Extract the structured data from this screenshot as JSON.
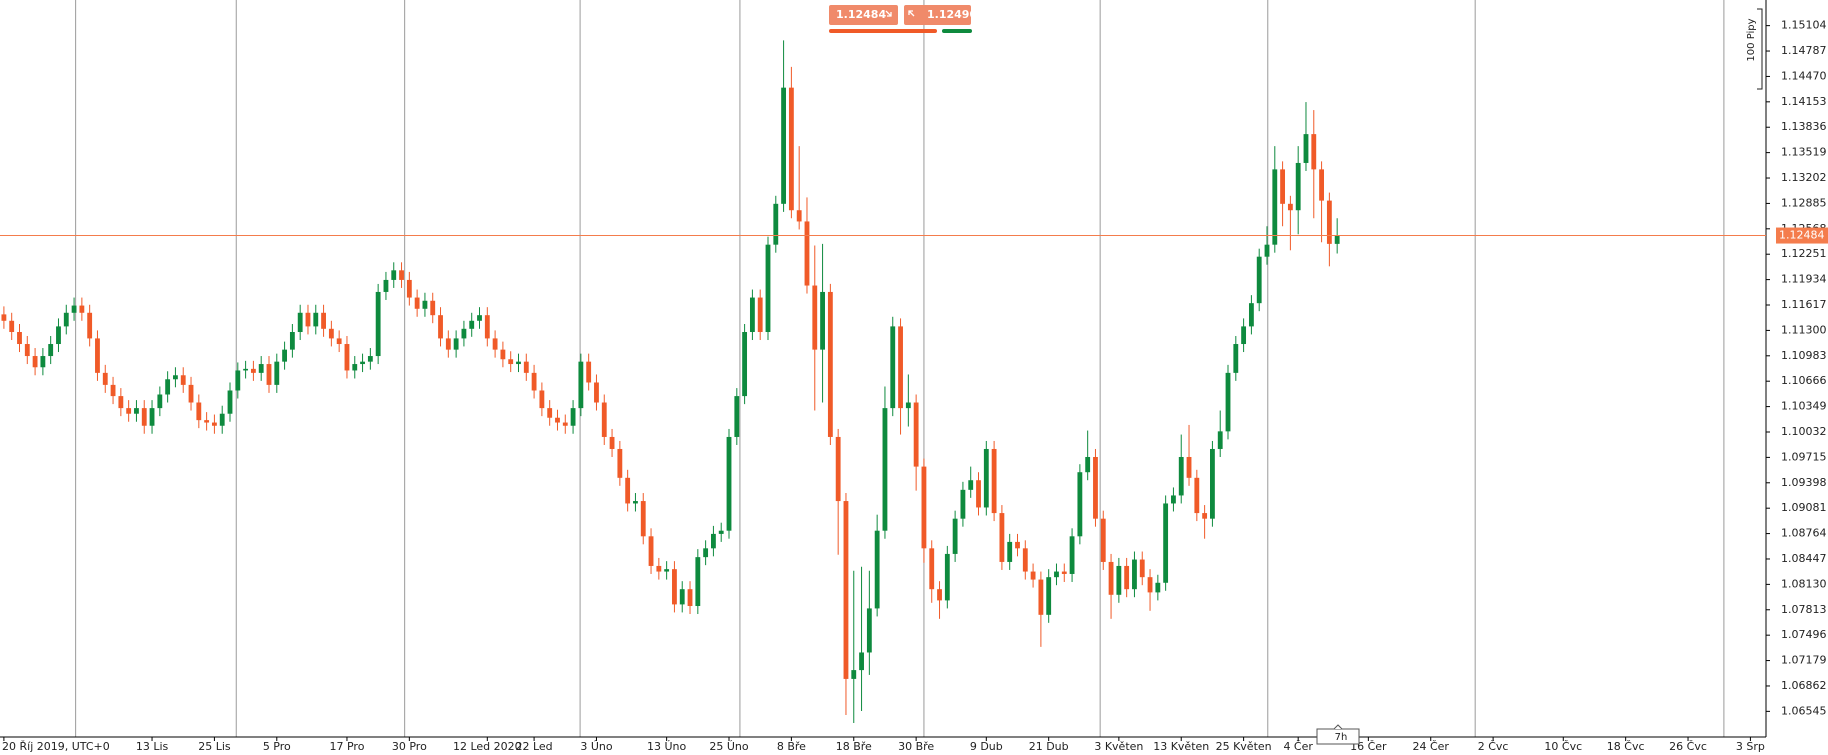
{
  "chart_data": {
    "type": "candlestick",
    "up_color": "#0e8a3e",
    "down_color": "#f05a28",
    "price_color": "#f47c4c",
    "ylim": [
      1.06225,
      1.15424
    ],
    "yticks": [
      {
        "value": 1.15104,
        "label": "1.15104"
      },
      {
        "value": 1.14787,
        "label": "1.14787"
      },
      {
        "value": 1.1447,
        "label": "1.14470"
      },
      {
        "value": 1.14153,
        "label": "1.14153"
      },
      {
        "value": 1.13836,
        "label": "1.13836"
      },
      {
        "value": 1.13519,
        "label": "1.13519"
      },
      {
        "value": 1.13202,
        "label": "1.13202"
      },
      {
        "value": 1.12885,
        "label": "1.12885"
      },
      {
        "value": 1.12568,
        "label": "1.12568"
      },
      {
        "value": 1.12251,
        "label": "1.12251"
      },
      {
        "value": 1.11934,
        "label": "1.11934"
      },
      {
        "value": 1.11617,
        "label": "1.11617"
      },
      {
        "value": 1.113,
        "label": "1.11300"
      },
      {
        "value": 1.10983,
        "label": "1.10983"
      },
      {
        "value": 1.10666,
        "label": "1.10666"
      },
      {
        "value": 1.10349,
        "label": "1.10349"
      },
      {
        "value": 1.10032,
        "label": "1.10032"
      },
      {
        "value": 1.09715,
        "label": "1.09715"
      },
      {
        "value": 1.09398,
        "label": "1.09398"
      },
      {
        "value": 1.09081,
        "label": "1.09081"
      },
      {
        "value": 1.08764,
        "label": "1.08764"
      },
      {
        "value": 1.08447,
        "label": "1.08447"
      },
      {
        "value": 1.0813,
        "label": "1.08130"
      },
      {
        "value": 1.07813,
        "label": "1.07813"
      },
      {
        "value": 1.07496,
        "label": "1.07496"
      },
      {
        "value": 1.07179,
        "label": "1.07179"
      },
      {
        "value": 1.06862,
        "label": "1.06862"
      },
      {
        "value": 1.06545,
        "label": "1.06545"
      }
    ],
    "xlim": [
      -0.5,
      226
    ],
    "xticks": [
      {
        "value": 0,
        "label": "20 Říj 2019, UTC+0"
      },
      {
        "value": 19,
        "label": "13 Lis"
      },
      {
        "value": 27,
        "label": "25 Lis"
      },
      {
        "value": 35,
        "label": "5 Pro"
      },
      {
        "value": 44,
        "label": "17 Pro"
      },
      {
        "value": 52,
        "label": "30 Pro"
      },
      {
        "value": 62,
        "label": "12 Led 2020"
      },
      {
        "value": 68,
        "label": "22 Led"
      },
      {
        "value": 76,
        "label": "3 Úno"
      },
      {
        "value": 85,
        "label": "13 Úno"
      },
      {
        "value": 93,
        "label": "25 Úno"
      },
      {
        "value": 101,
        "label": "8 Bře"
      },
      {
        "value": 109,
        "label": "18 Bře"
      },
      {
        "value": 117,
        "label": "30 Bře"
      },
      {
        "value": 126,
        "label": "9 Dub"
      },
      {
        "value": 134,
        "label": "21 Dub"
      },
      {
        "value": 143,
        "label": "3 Květen"
      },
      {
        "value": 151,
        "label": "13 Květen"
      },
      {
        "value": 159,
        "label": "25 Květen"
      },
      {
        "value": 166,
        "label": "4 Čer"
      },
      {
        "value": 175,
        "label": "16 Čer"
      },
      {
        "value": 183,
        "label": "24 Čer"
      },
      {
        "value": 191,
        "label": "2 Čvc"
      },
      {
        "value": 200,
        "label": "10 Čvc"
      },
      {
        "value": 208,
        "label": "18 Čvc"
      },
      {
        "value": 216,
        "label": "26 Čvc"
      },
      {
        "value": 224,
        "label": "3 Srp"
      }
    ],
    "xgrid": [
      9.2,
      29.8,
      51.4,
      73.9,
      94.4,
      118,
      140.6,
      162.1,
      188.7,
      220.6
    ],
    "current_price": 1.12484,
    "bid_label": "1.12484",
    "ask_label": "1.12490",
    "ruler_label": "100 Pipy",
    "timer_label": "7h",
    "ohlc": [
      [
        1.115,
        1.116,
        1.1132,
        1.1142
      ],
      [
        1.1142,
        1.1152,
        1.1118,
        1.1128
      ],
      [
        1.1128,
        1.1138,
        1.1103,
        1.1113
      ],
      [
        1.1113,
        1.1123,
        1.1088,
        1.1098
      ],
      [
        1.1098,
        1.1108,
        1.1074,
        1.1084
      ],
      [
        1.1084,
        1.1108,
        1.1074,
        1.1098
      ],
      [
        1.1098,
        1.1123,
        1.1088,
        1.1113
      ],
      [
        1.1113,
        1.1145,
        1.1103,
        1.1135
      ],
      [
        1.1135,
        1.1162,
        1.1125,
        1.1152
      ],
      [
        1.1152,
        1.1171,
        1.1142,
        1.1161
      ],
      [
        1.1161,
        1.1171,
        1.1142,
        1.1152
      ],
      [
        1.1152,
        1.1162,
        1.111,
        1.112
      ],
      [
        1.112,
        1.113,
        1.1067,
        1.1077
      ],
      [
        1.1077,
        1.1087,
        1.1052,
        1.1062
      ],
      [
        1.1062,
        1.1072,
        1.1038,
        1.1048
      ],
      [
        1.1048,
        1.1058,
        1.1023,
        1.1033
      ],
      [
        1.1033,
        1.1043,
        1.1016,
        1.1026
      ],
      [
        1.1026,
        1.1043,
        1.1016,
        1.1033
      ],
      [
        1.1033,
        1.1043,
        1.1001,
        1.1011
      ],
      [
        1.1011,
        1.1043,
        1.1001,
        1.1033
      ],
      [
        1.1033,
        1.106,
        1.1023,
        1.105
      ],
      [
        1.105,
        1.1079,
        1.104,
        1.1069
      ],
      [
        1.1069,
        1.1084,
        1.1059,
        1.1074
      ],
      [
        1.1074,
        1.1084,
        1.1052,
        1.1062
      ],
      [
        1.1062,
        1.1072,
        1.103,
        1.104
      ],
      [
        1.104,
        1.105,
        1.1008,
        1.1018
      ],
      [
        1.1018,
        1.1028,
        1.1005,
        1.1015
      ],
      [
        1.1015,
        1.1025,
        1.1001,
        1.1011
      ],
      [
        1.1011,
        1.1036,
        1.1001,
        1.1026
      ],
      [
        1.1026,
        1.1065,
        1.1016,
        1.1055
      ],
      [
        1.1055,
        1.109,
        1.1045,
        1.108
      ],
      [
        1.108,
        1.1092,
        1.107,
        1.1082
      ],
      [
        1.1082,
        1.1092,
        1.1067,
        1.1077
      ],
      [
        1.1077,
        1.1098,
        1.1067,
        1.1088
      ],
      [
        1.1088,
        1.1098,
        1.1052,
        1.1062
      ],
      [
        1.1062,
        1.1101,
        1.1052,
        1.1091
      ],
      [
        1.1091,
        1.1116,
        1.1081,
        1.1106
      ],
      [
        1.1106,
        1.1138,
        1.1096,
        1.1128
      ],
      [
        1.1128,
        1.1162,
        1.1118,
        1.1152
      ],
      [
        1.1152,
        1.1162,
        1.1125,
        1.1135
      ],
      [
        1.1135,
        1.1162,
        1.1125,
        1.1152
      ],
      [
        1.1152,
        1.1162,
        1.1122,
        1.1132
      ],
      [
        1.1132,
        1.1142,
        1.111,
        1.112
      ],
      [
        1.112,
        1.113,
        1.1103,
        1.1113
      ],
      [
        1.1113,
        1.1123,
        1.107,
        1.108
      ],
      [
        1.108,
        1.1098,
        1.107,
        1.1088
      ],
      [
        1.1088,
        1.1101,
        1.1078,
        1.1091
      ],
      [
        1.1091,
        1.1108,
        1.1081,
        1.1098
      ],
      [
        1.1098,
        1.1188,
        1.1088,
        1.1178
      ],
      [
        1.1178,
        1.1203,
        1.1168,
        1.1193
      ],
      [
        1.1193,
        1.1215,
        1.1183,
        1.1205
      ],
      [
        1.1205,
        1.1215,
        1.1183,
        1.1193
      ],
      [
        1.1193,
        1.1203,
        1.1161,
        1.1171
      ],
      [
        1.1171,
        1.1181,
        1.1147,
        1.1157
      ],
      [
        1.1157,
        1.1177,
        1.1147,
        1.1167
      ],
      [
        1.1167,
        1.1177,
        1.1139,
        1.1149
      ],
      [
        1.1149,
        1.1159,
        1.111,
        1.112
      ],
      [
        1.112,
        1.113,
        1.1096,
        1.1106
      ],
      [
        1.1106,
        1.113,
        1.1096,
        1.112
      ],
      [
        1.112,
        1.1142,
        1.111,
        1.1132
      ],
      [
        1.1132,
        1.1152,
        1.1122,
        1.1142
      ],
      [
        1.1142,
        1.1159,
        1.1132,
        1.1149
      ],
      [
        1.1149,
        1.1159,
        1.111,
        1.112
      ],
      [
        1.112,
        1.113,
        1.1096,
        1.1106
      ],
      [
        1.1106,
        1.1116,
        1.1084,
        1.1094
      ],
      [
        1.1094,
        1.1104,
        1.1078,
        1.1088
      ],
      [
        1.1088,
        1.1101,
        1.1078,
        1.1091
      ],
      [
        1.1091,
        1.1101,
        1.1067,
        1.1077
      ],
      [
        1.1077,
        1.1087,
        1.1045,
        1.1055
      ],
      [
        1.1055,
        1.1065,
        1.1023,
        1.1033
      ],
      [
        1.1033,
        1.1043,
        1.1011,
        1.1021
      ],
      [
        1.1021,
        1.1031,
        1.1005,
        1.1015
      ],
      [
        1.1015,
        1.1025,
        1.1001,
        1.1011
      ],
      [
        1.1011,
        1.1043,
        1.1001,
        1.1033
      ],
      [
        1.1033,
        1.1101,
        1.1023,
        1.1091
      ],
      [
        1.1091,
        1.1101,
        1.1055,
        1.1065
      ],
      [
        1.1065,
        1.1075,
        1.103,
        1.104
      ],
      [
        1.104,
        1.105,
        1.0987,
        1.0997
      ],
      [
        1.0997,
        1.1007,
        1.0972,
        1.0982
      ],
      [
        1.0982,
        1.0992,
        1.0936,
        1.0946
      ],
      [
        1.0946,
        1.0956,
        1.0904,
        1.0914
      ],
      [
        1.0914,
        1.0927,
        1.0904,
        1.0917
      ],
      [
        1.0917,
        1.0927,
        1.0863,
        1.0873
      ],
      [
        1.0873,
        1.0883,
        1.0826,
        1.0836
      ],
      [
        1.0836,
        1.0846,
        1.0819,
        1.0829
      ],
      [
        1.0829,
        1.0842,
        1.0819,
        1.0832
      ],
      [
        1.0832,
        1.0842,
        1.0778,
        1.0788
      ],
      [
        1.0788,
        1.0817,
        1.0778,
        1.0807
      ],
      [
        1.0807,
        1.0817,
        1.0776,
        1.0786
      ],
      [
        1.0786,
        1.0857,
        1.0776,
        1.0847
      ],
      [
        1.0847,
        1.0868,
        1.0837,
        1.0858
      ],
      [
        1.0858,
        1.0886,
        1.0848,
        1.0876
      ],
      [
        1.0876,
        1.089,
        1.0866,
        1.088
      ],
      [
        1.088,
        1.1007,
        1.087,
        1.0997
      ],
      [
        1.0997,
        1.1058,
        1.0987,
        1.1048
      ],
      [
        1.1048,
        1.1138,
        1.1038,
        1.1128
      ],
      [
        1.1128,
        1.1181,
        1.1118,
        1.1171
      ],
      [
        1.1171,
        1.1181,
        1.1118,
        1.1128
      ],
      [
        1.1128,
        1.1247,
        1.1118,
        1.1237
      ],
      [
        1.1237,
        1.1298,
        1.1227,
        1.1288
      ],
      [
        1.1288,
        1.1492,
        1.1278,
        1.1433
      ],
      [
        1.1433,
        1.1459,
        1.127,
        1.128
      ],
      [
        1.128,
        1.136,
        1.1256,
        1.1266
      ],
      [
        1.1266,
        1.1296,
        1.1176,
        1.1186
      ],
      [
        1.1186,
        1.1236,
        1.103,
        1.1106
      ],
      [
        1.1106,
        1.1238,
        1.104,
        1.1178
      ],
      [
        1.1178,
        1.1188,
        1.0987,
        1.0997
      ],
      [
        1.0997,
        1.1007,
        1.085,
        1.0917
      ],
      [
        1.0917,
        1.0927,
        1.065,
        1.0695
      ],
      [
        1.0695,
        1.083,
        1.064,
        1.0706
      ],
      [
        1.0706,
        1.0835,
        1.0655,
        1.0728
      ],
      [
        1.0728,
        1.083,
        1.07,
        1.0783
      ],
      [
        1.0783,
        1.09,
        1.0773,
        1.088
      ],
      [
        1.088,
        1.106,
        1.087,
        1.1033
      ],
      [
        1.1033,
        1.1147,
        1.1023,
        1.1135
      ],
      [
        1.1135,
        1.1145,
        1.1,
        1.1033
      ],
      [
        1.1033,
        1.1075,
        1.101,
        1.104
      ],
      [
        1.104,
        1.105,
        1.093,
        1.096
      ],
      [
        1.096,
        1.097,
        1.084,
        1.0858
      ],
      [
        1.0858,
        1.0868,
        1.079,
        1.0807
      ],
      [
        1.0807,
        1.0817,
        1.077,
        1.0793
      ],
      [
        1.0793,
        1.0861,
        1.0783,
        1.0851
      ],
      [
        1.0851,
        1.0905,
        1.0841,
        1.0895
      ],
      [
        1.0895,
        1.0941,
        1.0885,
        1.0931
      ],
      [
        1.0931,
        1.096,
        1.0921,
        1.0943
      ],
      [
        1.0943,
        1.0953,
        1.0899,
        1.0909
      ],
      [
        1.0909,
        1.0992,
        1.0899,
        1.0982
      ],
      [
        1.0982,
        1.0992,
        1.0892,
        1.0902
      ],
      [
        1.0902,
        1.0912,
        1.0831,
        1.0841
      ],
      [
        1.0841,
        1.0876,
        1.0831,
        1.0866
      ],
      [
        1.0866,
        1.0876,
        1.0848,
        1.0858
      ],
      [
        1.0858,
        1.0868,
        1.0819,
        1.0829
      ],
      [
        1.0829,
        1.0839,
        1.0809,
        1.0819
      ],
      [
        1.0819,
        1.0829,
        1.0735,
        1.0775
      ],
      [
        1.0775,
        1.0832,
        1.0765,
        1.0822
      ],
      [
        1.0822,
        1.0839,
        1.0812,
        1.0829
      ],
      [
        1.0829,
        1.0839,
        1.0816,
        1.0826
      ],
      [
        1.0826,
        1.0883,
        1.0816,
        1.0873
      ],
      [
        1.0873,
        1.0963,
        1.0863,
        1.0953
      ],
      [
        1.0953,
        1.1005,
        1.0943,
        1.0972
      ],
      [
        1.0972,
        1.0982,
        1.0885,
        1.0895
      ],
      [
        1.0895,
        1.0905,
        1.0831,
        1.0841
      ],
      [
        1.0841,
        1.0851,
        1.077,
        1.08
      ],
      [
        1.08,
        1.0846,
        1.079,
        1.0836
      ],
      [
        1.0836,
        1.0846,
        1.0797,
        1.0807
      ],
      [
        1.0807,
        1.0854,
        1.0797,
        1.0844
      ],
      [
        1.0844,
        1.0854,
        1.0812,
        1.0822
      ],
      [
        1.0822,
        1.0832,
        1.078,
        1.0803
      ],
      [
        1.0803,
        1.0825,
        1.0793,
        1.0815
      ],
      [
        1.0815,
        1.0924,
        1.0805,
        1.0914
      ],
      [
        1.0914,
        1.0934,
        1.0904,
        1.0924
      ],
      [
        1.0924,
        1.1,
        1.0914,
        1.0972
      ],
      [
        1.0972,
        1.1012,
        1.0936,
        1.0946
      ],
      [
        1.0946,
        1.0956,
        1.0892,
        1.0902
      ],
      [
        1.0902,
        1.0912,
        1.087,
        1.0895
      ],
      [
        1.0895,
        1.0992,
        1.0885,
        1.0982
      ],
      [
        1.0982,
        1.103,
        1.0972,
        1.1004
      ],
      [
        1.1004,
        1.1087,
        1.0994,
        1.1077
      ],
      [
        1.1077,
        1.1123,
        1.1067,
        1.1113
      ],
      [
        1.1113,
        1.1145,
        1.1103,
        1.1135
      ],
      [
        1.1135,
        1.1174,
        1.1125,
        1.1164
      ],
      [
        1.1164,
        1.1232,
        1.1154,
        1.1222
      ],
      [
        1.1222,
        1.126,
        1.1212,
        1.1237
      ],
      [
        1.1237,
        1.136,
        1.1227,
        1.1331
      ],
      [
        1.1331,
        1.1341,
        1.126,
        1.1288
      ],
      [
        1.1288,
        1.1298,
        1.123,
        1.128
      ],
      [
        1.128,
        1.136,
        1.125,
        1.1339
      ],
      [
        1.1339,
        1.1415,
        1.1329,
        1.1375
      ],
      [
        1.1375,
        1.1405,
        1.127,
        1.1331
      ],
      [
        1.1331,
        1.1341,
        1.124,
        1.1292
      ],
      [
        1.1292,
        1.1302,
        1.121,
        1.1238
      ],
      [
        1.1238,
        1.127,
        1.1226,
        1.1248
      ]
    ]
  }
}
